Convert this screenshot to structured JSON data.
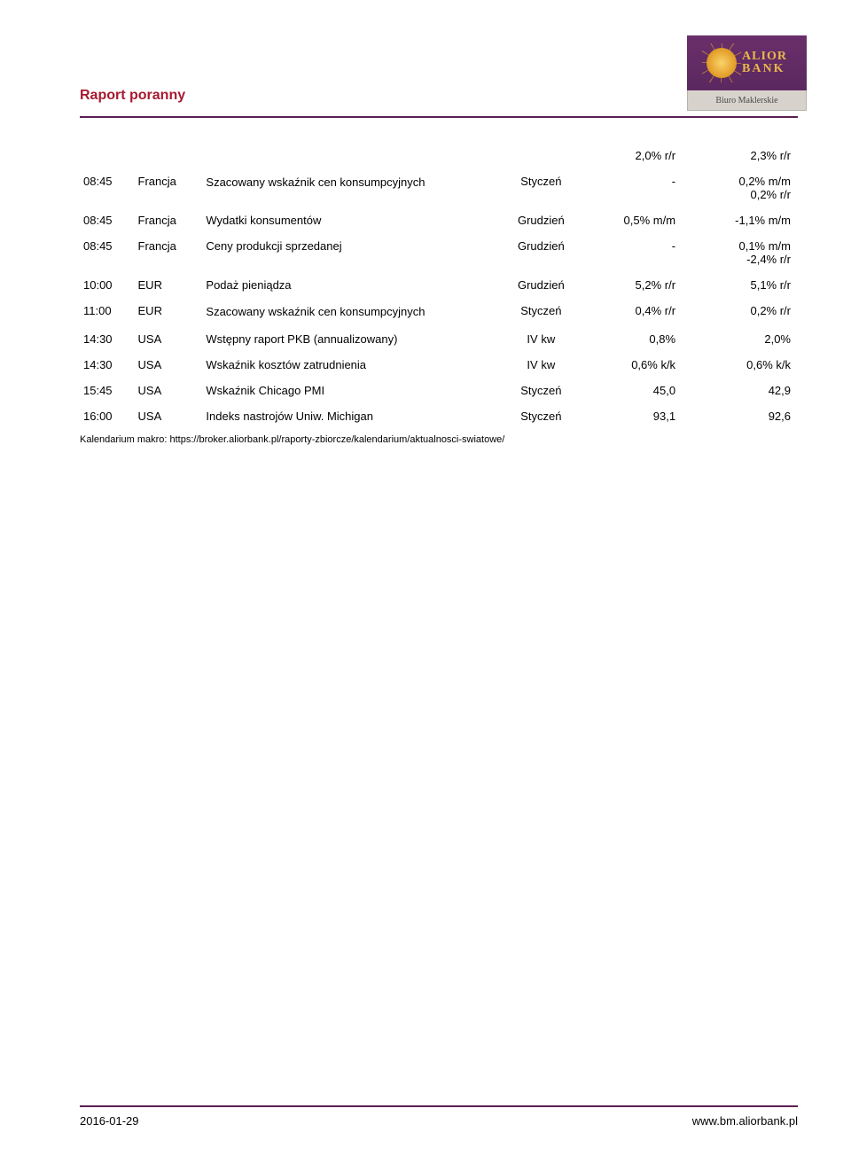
{
  "header": {
    "title": "Raport poranny",
    "logo": {
      "line1": "ALIOR",
      "line2": "BANK",
      "sub": "Biuro Maklerskie"
    }
  },
  "colors": {
    "title": "#a71930",
    "rule": "#5a1e52",
    "logo_top_bg": "#5b2860",
    "logo_gold": "#e9b74c",
    "logo_bottom_bg": "#d7d3cc"
  },
  "pre_row": {
    "v1": "2,0% r/r",
    "v2": "2,3% r/r"
  },
  "rows": [
    {
      "time": "08:45",
      "region": "Francja",
      "event": "Szacowany wskaźnik cen konsumpcyjnych",
      "event2": "",
      "period": "Styczeń",
      "v1": "-",
      "v1b": "",
      "v2": "0,2% m/m",
      "v2b": "0,2% r/r"
    },
    {
      "time": "08:45",
      "region": "Francja",
      "event": "Wydatki konsumentów",
      "period": "Grudzień",
      "v1": "0,5% m/m",
      "v2": "-1,1% m/m"
    },
    {
      "time": "08:45",
      "region": "Francja",
      "event": "Ceny produkcji sprzedanej",
      "period": "Grudzień",
      "v1": "-",
      "v1b": "",
      "v2": "0,1% m/m",
      "v2b": "-2,4% r/r"
    },
    {
      "time": "10:00",
      "region": "EUR",
      "event": "Podaż pieniądza",
      "period": "Grudzień",
      "v1": "5,2% r/r",
      "v2": "5,1% r/r"
    },
    {
      "time": "11:00",
      "region": "EUR",
      "event": "Szacowany wskaźnik cen konsumpcyjnych",
      "period": "Styczeń",
      "v1": "0,4% r/r",
      "v2": "0,2% r/r"
    },
    {
      "time": "14:30",
      "region": "USA",
      "event": "Wstępny raport PKB (annualizowany)",
      "period": "IV kw",
      "v1": "0,8%",
      "v2": "2,0%"
    },
    {
      "time": "14:30",
      "region": "USA",
      "event": "Wskaźnik kosztów zatrudnienia",
      "period": "IV kw",
      "v1": "0,6% k/k",
      "v2": "0,6% k/k"
    },
    {
      "time": "15:45",
      "region": "USA",
      "event": "Wskaźnik Chicago PMI",
      "period": "Styczeń",
      "v1": "45,0",
      "v2": "42,9"
    },
    {
      "time": "16:00",
      "region": "USA",
      "event": "Indeks nastrojów Uniw. Michigan",
      "period": "Styczeń",
      "v1": "93,1",
      "v2": "92,6"
    }
  ],
  "source": {
    "label": "Kalendarium makro:",
    "url": "https://broker.aliorbank.pl/raporty-zbiorcze/kalendarium/aktualnosci-swiatowe/"
  },
  "footer": {
    "date": "2016-01-29",
    "site": "www.bm.aliorbank.pl"
  }
}
